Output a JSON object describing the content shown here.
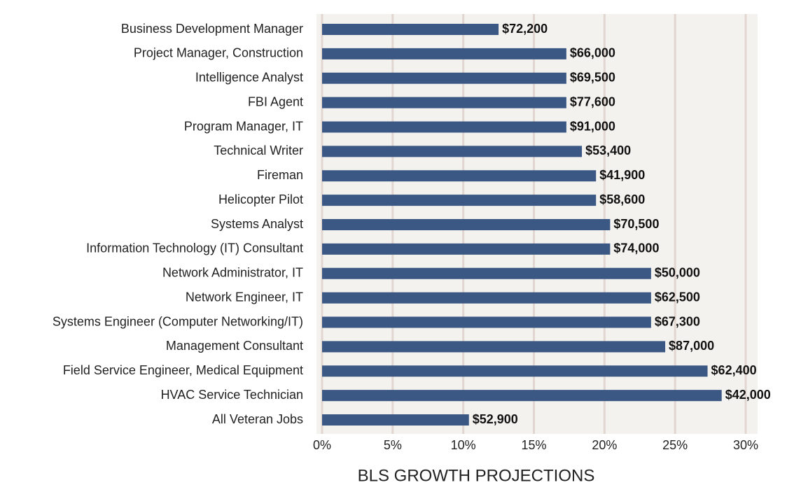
{
  "chart_data": {
    "type": "barh",
    "categories": [
      "Business Development Manager",
      "Project Manager, Construction",
      "Intelligence Analyst",
      "FBI Agent",
      "Program Manager, IT",
      "Technical Writer",
      "Fireman",
      "Helicopter Pilot",
      "Systems Analyst",
      "Information Technology (IT) Consultant",
      "Network Administrator, IT",
      "Network Engineer, IT",
      "Systems Engineer (Computer Networking/IT)",
      "Management Consultant",
      "Field Service Engineer, Medical Equipment",
      "HVAC Service Technician",
      "All Veteran Jobs"
    ],
    "values": [
      12.5,
      17.3,
      17.3,
      17.3,
      17.3,
      18.4,
      19.4,
      19.4,
      20.4,
      20.4,
      23.3,
      23.3,
      23.3,
      24.3,
      27.3,
      28.3,
      10.4
    ],
    "salaries": [
      "$72,200",
      "$66,000",
      "$69,500",
      "$77,600",
      "$91,000",
      "$53,400",
      "$41,900",
      "$58,600",
      "$70,500",
      "$74,000",
      "$50,000",
      "$62,500",
      "$67,300",
      "$87,000",
      "$62,400",
      "$42,000",
      "$52,900"
    ],
    "color": "#3b5884",
    "xlabel": "BLS GROWTH PROJECTIONS",
    "xlim": [
      0,
      30
    ],
    "xticks": [
      {
        "value": 0,
        "label": "0%"
      },
      {
        "value": 5,
        "label": "5%"
      },
      {
        "value": 10,
        "label": "10%"
      },
      {
        "value": 15,
        "label": "15%"
      },
      {
        "value": 20,
        "label": "20%"
      },
      {
        "value": 25,
        "label": "25%"
      },
      {
        "value": 30,
        "label": "30%"
      }
    ],
    "grid": true
  }
}
